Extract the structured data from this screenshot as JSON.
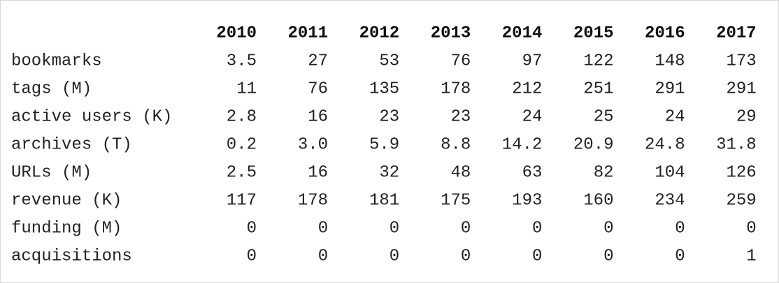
{
  "table": {
    "columns": [
      "2010",
      "2011",
      "2012",
      "2013",
      "2014",
      "2015",
      "2016",
      "2017"
    ],
    "rows": [
      {
        "label": "bookmarks",
        "values": [
          "3.5",
          "27",
          "53",
          "76",
          "97",
          "122",
          "148",
          "173"
        ]
      },
      {
        "label": "tags (M)",
        "values": [
          "11",
          "76",
          "135",
          "178",
          "212",
          "251",
          "291",
          "291"
        ]
      },
      {
        "label": "active users (K)",
        "values": [
          "2.8",
          "16",
          "23",
          "23",
          "24",
          "25",
          "24",
          "29"
        ]
      },
      {
        "label": "archives (T)",
        "values": [
          "0.2",
          "3.0",
          "5.9",
          "8.8",
          "14.2",
          "20.9",
          "24.8",
          "31.8"
        ]
      },
      {
        "label": "URLs (M)",
        "values": [
          "2.5",
          "16",
          "32",
          "48",
          "63",
          "82",
          "104",
          "126"
        ]
      },
      {
        "label": "revenue (K)",
        "values": [
          "117",
          "178",
          "181",
          "175",
          "193",
          "160",
          "234",
          "259"
        ]
      },
      {
        "label": "funding (M)",
        "values": [
          "0",
          "0",
          "0",
          "0",
          "0",
          "0",
          "0",
          "0"
        ]
      },
      {
        "label": "acquisitions",
        "values": [
          "0",
          "0",
          "0",
          "0",
          "0",
          "0",
          "0",
          "1"
        ]
      }
    ]
  }
}
